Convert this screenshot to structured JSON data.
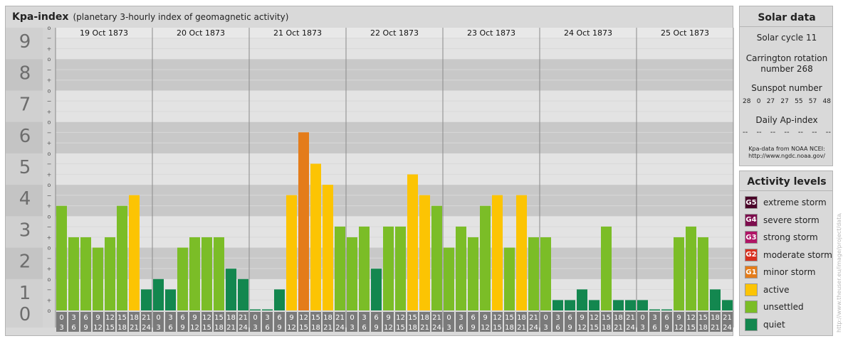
{
  "header": {
    "title": "Kpa-index",
    "subtitle": "(planetary 3-hourly index of geomagnetic activity)"
  },
  "colors": {
    "quiet": "#13874f",
    "unsettled": "#7bbd27",
    "active": "#fcc403",
    "G1": "#e47c1a",
    "G2": "#d8301f",
    "G3": "#b01566",
    "G4": "#7d0d4d",
    "G5": "#4a0329"
  },
  "chart_data": {
    "type": "bar",
    "title": "Kpa-index",
    "ylim": [
      0,
      9
    ],
    "y_ticks": [
      "0",
      "1",
      "2",
      "3",
      "4",
      "5",
      "6",
      "7",
      "8",
      "9"
    ],
    "minor_ticks": [
      "o",
      "+",
      "−"
    ],
    "days": [
      "19 Oct 1873",
      "20 Oct 1873",
      "21 Oct 1873",
      "22 Oct 1873",
      "23 Oct 1873",
      "24 Oct 1873",
      "25 Oct 1873"
    ],
    "interval_starts": [
      "0",
      "3",
      "6",
      "9",
      "12",
      "15",
      "18",
      "21"
    ],
    "interval_ends": [
      "3",
      "6",
      "9",
      "12",
      "15",
      "18",
      "21",
      "24"
    ],
    "values": [
      [
        3.33,
        2.33,
        2.33,
        2.0,
        2.33,
        3.33,
        3.67,
        0.67
      ],
      [
        1.0,
        0.67,
        2.0,
        2.33,
        2.33,
        2.33,
        1.33,
        1.0
      ],
      [
        0.0,
        0.0,
        0.67,
        3.67,
        5.67,
        4.67,
        4.0,
        2.67
      ],
      [
        2.33,
        2.67,
        1.33,
        2.67,
        2.67,
        4.33,
        3.67,
        3.33
      ],
      [
        2.0,
        2.67,
        2.33,
        3.33,
        3.67,
        2.0,
        3.67,
        2.33
      ],
      [
        2.33,
        0.33,
        0.33,
        0.67,
        0.33,
        2.67,
        0.33,
        0.33
      ],
      [
        0.33,
        0.0,
        0.0,
        2.33,
        2.67,
        2.33,
        0.67,
        0.33
      ]
    ]
  },
  "solar": {
    "heading": "Solar data",
    "cycle": "Solar cycle 11",
    "carrington_l1": "Carrington rotation",
    "carrington_l2": "number 268",
    "sunspot_heading": "Sunspot number",
    "sunspots": [
      "28",
      "0",
      "27",
      "27",
      "55",
      "57",
      "48"
    ],
    "ap_heading": "Daily Ap-index",
    "ap": [
      "--",
      "--",
      "--",
      "--",
      "--",
      "--",
      "--"
    ],
    "source_l1": "Kpa-data from NOAA NCEI:",
    "source_l2": "http://www.ngdc.noaa.gov/"
  },
  "levels": {
    "heading": "Activity levels",
    "items": [
      {
        "badge": "G5",
        "label": "extreme storm",
        "color": "#4a0329"
      },
      {
        "badge": "G4",
        "label": "severe storm",
        "color": "#7d0d4d"
      },
      {
        "badge": "G3",
        "label": "strong storm",
        "color": "#b01566"
      },
      {
        "badge": "G2",
        "label": "moderate storm",
        "color": "#d8301f"
      },
      {
        "badge": "G1",
        "label": "minor storm",
        "color": "#e47c1a"
      },
      {
        "badge": "",
        "label": "active",
        "color": "#fcc403"
      },
      {
        "badge": "",
        "label": "unsettled",
        "color": "#7bbd27"
      },
      {
        "badge": "",
        "label": "quiet",
        "color": "#13874f"
      }
    ]
  },
  "watermark": "http://www.theuser.eu/image/project/data/archive.php"
}
